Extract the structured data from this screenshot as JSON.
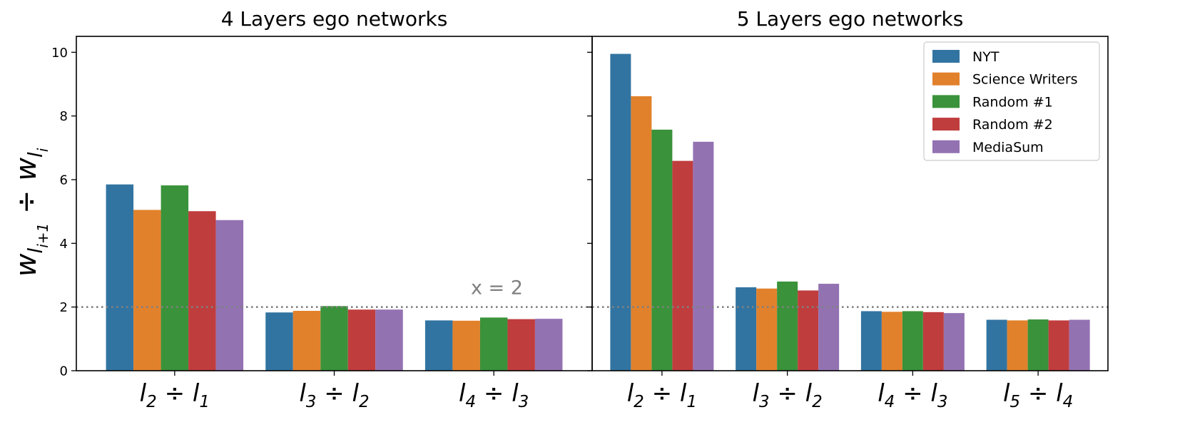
{
  "chart_data": [
    {
      "type": "bar",
      "title": "4 Layers ego networks",
      "ylabel_main": "w",
      "ylabel_sub1": "l",
      "ylabel_sub1_sub": "i+1",
      "ylabel_op": "÷",
      "ylabel_main2": "w",
      "ylabel_sub2": "l",
      "ylabel_sub2_sub": "i",
      "ylim": [
        0,
        10.5
      ],
      "yticks": [
        0,
        2,
        4,
        6,
        8,
        10
      ],
      "categories": [
        {
          "a": "l",
          "a_sub": "2",
          "op": "÷",
          "b": "l",
          "b_sub": "1"
        },
        {
          "a": "l",
          "a_sub": "3",
          "op": "÷",
          "b": "l",
          "b_sub": "2"
        },
        {
          "a": "l",
          "a_sub": "4",
          "op": "÷",
          "b": "l",
          "b_sub": "3"
        }
      ],
      "series": [
        {
          "name": "NYT",
          "color": "#3274a1",
          "values": [
            5.85,
            1.83,
            1.58
          ]
        },
        {
          "name": "Science Writers",
          "color": "#e1812c",
          "values": [
            5.05,
            1.88,
            1.57
          ]
        },
        {
          "name": "Random #1",
          "color": "#3a923a",
          "values": [
            5.82,
            2.03,
            1.67
          ]
        },
        {
          "name": "Random #2",
          "color": "#c03d3e",
          "values": [
            5.01,
            1.92,
            1.62
          ]
        },
        {
          "name": "MediaSum",
          "color": "#9372b2",
          "values": [
            4.73,
            1.92,
            1.63
          ]
        }
      ],
      "hline": {
        "y": 2,
        "label": "x = 2",
        "color": "#808080"
      }
    },
    {
      "type": "bar",
      "title": "5 Layers ego networks",
      "ylim": [
        0,
        10.5
      ],
      "categories": [
        {
          "a": "l",
          "a_sub": "2",
          "op": "÷",
          "b": "l",
          "b_sub": "1"
        },
        {
          "a": "l",
          "a_sub": "3",
          "op": "÷",
          "b": "l",
          "b_sub": "2"
        },
        {
          "a": "l",
          "a_sub": "4",
          "op": "÷",
          "b": "l",
          "b_sub": "3"
        },
        {
          "a": "l",
          "a_sub": "5",
          "op": "÷",
          "b": "l",
          "b_sub": "4"
        }
      ],
      "series": [
        {
          "name": "NYT",
          "color": "#3274a1",
          "values": [
            9.95,
            2.62,
            1.87,
            1.6
          ]
        },
        {
          "name": "Science Writers",
          "color": "#e1812c",
          "values": [
            8.62,
            2.58,
            1.85,
            1.58
          ]
        },
        {
          "name": "Random #1",
          "color": "#3a923a",
          "values": [
            7.57,
            2.8,
            1.87,
            1.61
          ]
        },
        {
          "name": "Random #2",
          "color": "#c03d3e",
          "values": [
            6.59,
            2.52,
            1.84,
            1.58
          ]
        },
        {
          "name": "MediaSum",
          "color": "#9372b2",
          "values": [
            7.19,
            2.73,
            1.81,
            1.6
          ]
        }
      ],
      "hline": {
        "y": 2,
        "color": "#808080"
      },
      "legend": {
        "position": "upper right",
        "entries": [
          "NYT",
          "Science Writers",
          "Random #1",
          "Random #2",
          "MediaSum"
        ]
      }
    }
  ]
}
